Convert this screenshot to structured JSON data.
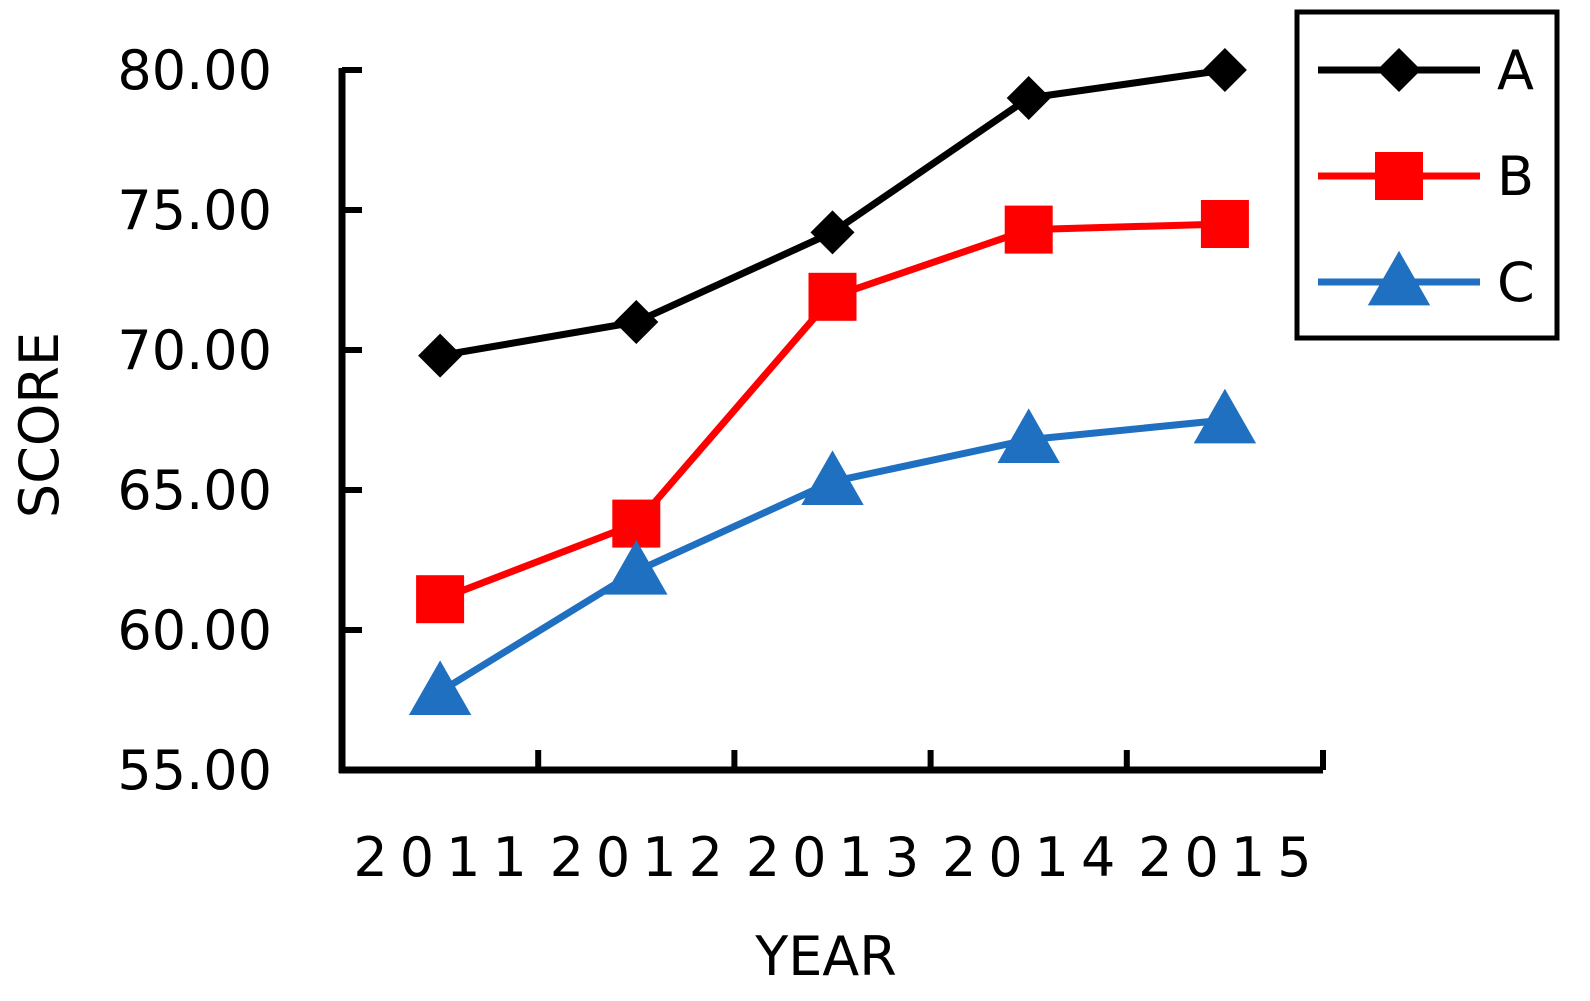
{
  "chart_data": {
    "type": "line",
    "xlabel": "YEAR",
    "ylabel": "SCORE",
    "categories": [
      "2011",
      "2012",
      "2013",
      "2014",
      "2015"
    ],
    "ylim": [
      55,
      80
    ],
    "yticks": [
      "55.00",
      "60.00",
      "65.00",
      "70.00",
      "75.00",
      "80.00"
    ],
    "legend_position": "top-right",
    "grid": false,
    "series": [
      {
        "name": "A",
        "color": "#000000",
        "marker": "diamond",
        "values": [
          69.8,
          71.0,
          74.2,
          79.0,
          80.0
        ]
      },
      {
        "name": "B",
        "color": "#ff0000",
        "marker": "square",
        "values": [
          61.1,
          63.8,
          71.9,
          74.3,
          74.5
        ]
      },
      {
        "name": "C",
        "color": "#1f70c1",
        "marker": "triangle",
        "values": [
          57.8,
          62.1,
          65.3,
          66.8,
          67.5
        ]
      }
    ]
  }
}
